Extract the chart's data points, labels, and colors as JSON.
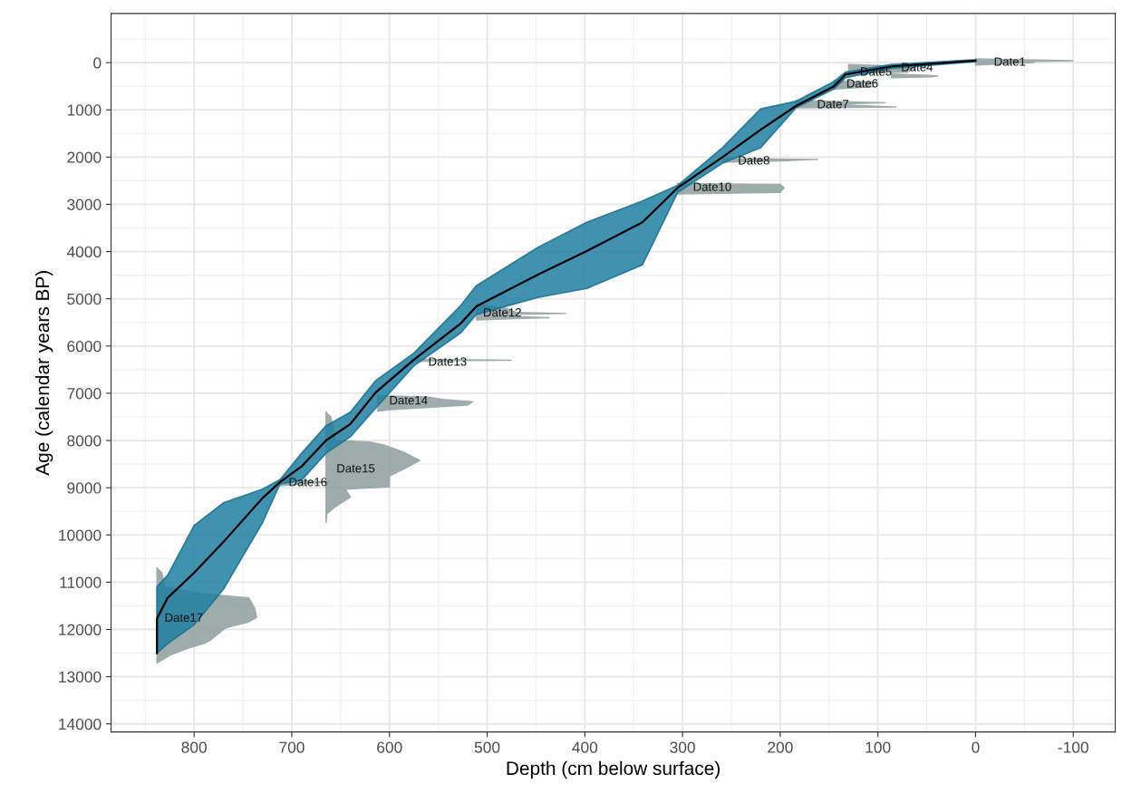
{
  "chart_data": {
    "type": "line",
    "xlabel": "Depth (cm below surface)",
    "ylabel": "Age (calendar years BP)",
    "xlim": [
      885,
      -143
    ],
    "ylim": [
      14170,
      -1040
    ],
    "xticks": [
      800,
      700,
      600,
      500,
      400,
      300,
      200,
      100,
      0,
      -100
    ],
    "yticks": [
      0,
      1000,
      2000,
      3000,
      4000,
      5000,
      6000,
      7000,
      8000,
      9000,
      10000,
      11000,
      12000,
      13000,
      14000
    ],
    "grid": true,
    "series": [
      {
        "type": "area",
        "color": "#8e9e9e",
        "x": [
          838,
          833,
          830,
          790,
          744,
          738,
          736,
          745,
          768,
          784,
          790,
          805,
          824,
          838
        ],
        "values": [
          10700,
          10800,
          11100,
          11250,
          11330,
          11550,
          11750,
          11850,
          11970,
          12240,
          12300,
          12390,
          12540,
          12710
        ]
      },
      {
        "type": "area",
        "color": "#8e9e9e",
        "x": [
          665,
          660,
          655,
          620,
          605,
          585,
          569,
          585,
          600,
          600,
          645,
          640,
          655,
          664,
          665
        ],
        "values": [
          7400,
          7500,
          8000,
          8030,
          8100,
          8250,
          8420,
          8600,
          8750,
          8980,
          9030,
          9200,
          9400,
          9550,
          9740
        ]
      },
      {
        "type": "area",
        "color": "#8e9e9e",
        "x": [
          712,
          690,
          660,
          690,
          712
        ],
        "values": [
          8820,
          8850,
          8880,
          8920,
          8960
        ]
      },
      {
        "type": "area",
        "color": "#8e9e9e",
        "x": [
          612,
          560,
          545,
          515,
          520,
          560,
          600,
          612
        ],
        "values": [
          7050,
          7080,
          7130,
          7180,
          7250,
          7300,
          7350,
          7380
        ]
      },
      {
        "type": "area",
        "color": "#8e9e9e",
        "x": [
          578,
          540,
          475,
          540,
          578
        ],
        "values": [
          6270,
          6290,
          6300,
          6310,
          6330
        ]
      },
      {
        "type": "area",
        "color": "#8e9e9e",
        "x": [
          511,
          480,
          470,
          419,
          470,
          470,
          436,
          470,
          511
        ],
        "values": [
          5120,
          5200,
          5290,
          5310,
          5330,
          5380,
          5400,
          5420,
          5450
        ]
      },
      {
        "type": "area",
        "color": "#8e9e9e",
        "x": [
          305,
          200,
          196,
          200,
          305
        ],
        "values": [
          2560,
          2580,
          2650,
          2750,
          2780
        ]
      },
      {
        "type": "area",
        "color": "#8e9e9e",
        "x": [
          259,
          161,
          200,
          259
        ],
        "values": [
          2030,
          2050,
          2080,
          2110
        ]
      },
      {
        "type": "area",
        "color": "#8e9e9e",
        "x": [
          184,
          92,
          150,
          81,
          184
        ],
        "values": [
          800,
          850,
          880,
          940,
          960
        ]
      },
      {
        "type": "area",
        "color": "#8e9e9e",
        "x": [
          145,
          100,
          120,
          103,
          145
        ],
        "values": [
          380,
          420,
          460,
          510,
          560
        ]
      },
      {
        "type": "area",
        "color": "#8e9e9e",
        "x": [
          130,
          100,
          62,
          70,
          130
        ],
        "values": [
          40,
          60,
          120,
          200,
          230
        ]
      },
      {
        "type": "area",
        "color": "#8e9e9e",
        "x": [
          86,
          60,
          38,
          45,
          86
        ],
        "values": [
          240,
          260,
          280,
          300,
          320
        ]
      },
      {
        "type": "area",
        "color": "#8e9e9e",
        "x": [
          0,
          -50,
          -100,
          -50,
          -60,
          0
        ],
        "values": [
          -80,
          -60,
          -40,
          -20,
          0,
          50
        ]
      },
      {
        "color": "#000000",
        "x": [
          838,
          838,
          827,
          800,
          770,
          730,
          712,
          690,
          665,
          640,
          614,
          575,
          527,
          511,
          448,
          398,
          341,
          305,
          259,
          220,
          184,
          145,
          133,
          86,
          0
        ],
        "values": [
          12500,
          11770,
          11330,
          10800,
          10150,
          9220,
          8880,
          8550,
          8000,
          7650,
          6980,
          6290,
          5520,
          5160,
          4490,
          3990,
          3380,
          2650,
          2000,
          1420,
          920,
          500,
          250,
          80,
          -40
        ],
        "lower": [
          11100,
          11100,
          10850,
          9800,
          9320,
          9030,
          8830,
          8270,
          7690,
          7400,
          6730,
          6150,
          5140,
          4720,
          3910,
          3380,
          2930,
          2600,
          1800,
          980,
          820,
          400,
          200,
          40,
          -60
        ],
        "upper": [
          12500,
          12500,
          12300,
          11900,
          11150,
          9740,
          8920,
          8840,
          8270,
          7920,
          7310,
          6420,
          5720,
          5330,
          4970,
          4780,
          4280,
          2750,
          2130,
          1800,
          960,
          560,
          320,
          120,
          -20
        ]
      }
    ],
    "annotations": [
      {
        "text": "Date1",
        "x": -11,
        "y": 0
      },
      {
        "text": "Date4",
        "x": 84,
        "y": 115
      },
      {
        "text": "Date5",
        "x": 126,
        "y": 210
      },
      {
        "text": "Date6",
        "x": 140,
        "y": 460
      },
      {
        "text": "Date7",
        "x": 170,
        "y": 900
      },
      {
        "text": "Date8",
        "x": 251,
        "y": 2090
      },
      {
        "text": "Date10",
        "x": 297,
        "y": 2650
      },
      {
        "text": "Date12",
        "x": 512,
        "y": 5310
      },
      {
        "text": "Date13",
        "x": 568,
        "y": 6350
      },
      {
        "text": "Date14",
        "x": 608,
        "y": 7170
      },
      {
        "text": "Date15",
        "x": 662,
        "y": 8610
      },
      {
        "text": "Date16",
        "x": 711,
        "y": 8900
      },
      {
        "text": "Date17",
        "x": 838,
        "y": 11770
      }
    ]
  }
}
